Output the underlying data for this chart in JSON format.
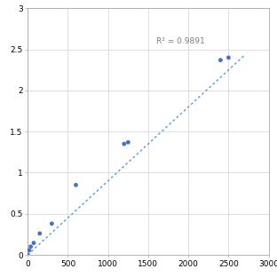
{
  "x_data": [
    0,
    18.75,
    37.5,
    75,
    150,
    300,
    600,
    1200,
    1250,
    2400,
    2500
  ],
  "y_data": [
    0.0,
    0.055,
    0.1,
    0.145,
    0.26,
    0.38,
    0.85,
    1.35,
    1.37,
    2.37,
    2.4
  ],
  "trendline_x": [
    0,
    2700
  ],
  "trendline_y": [
    0.0,
    2.43
  ],
  "r2_text": "R² = 0.9891",
  "r2_x": 1600,
  "r2_y": 2.55,
  "xlim": [
    0,
    3000
  ],
  "ylim": [
    0,
    3
  ],
  "xticks": [
    0,
    500,
    1000,
    1500,
    2000,
    2500,
    3000
  ],
  "yticks": [
    0,
    0.5,
    1.0,
    1.5,
    2.0,
    2.5,
    3.0
  ],
  "dot_color": "#4472C4",
  "line_color": "#5B9BD5",
  "bg_color": "#FFFFFF",
  "grid_color": "#D9D9D9",
  "tick_label_fontsize": 6.5,
  "annotation_fontsize": 6.5,
  "dot_size": 12
}
